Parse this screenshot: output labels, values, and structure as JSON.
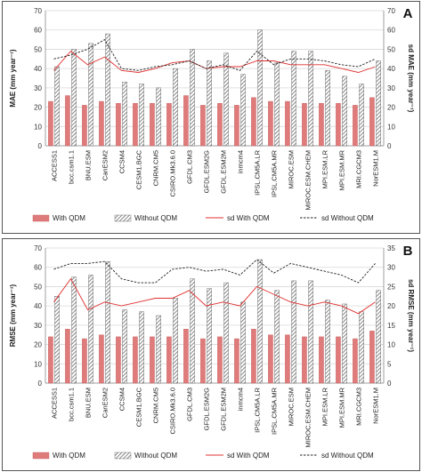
{
  "chart_data": [
    {
      "type": "bar",
      "panel_label": "A",
      "ylabel": "MAE (mm year⁻¹)",
      "y2label": "sd MAE (mm year⁻¹)",
      "ylim": [
        0,
        70
      ],
      "y2lim": [
        0,
        70
      ],
      "yticks": [
        0,
        10,
        20,
        30,
        40,
        50,
        60,
        70
      ],
      "categories": [
        "ACCESS1",
        "bcc.csm1.1",
        "BNU.ESM",
        "CanESM2",
        "CCSM4",
        "CESM1.BGC",
        "CNRM.CM5",
        "CSIRO.Mk3.6.0",
        "GFDL.CM3",
        "GFDL.ESM2G",
        "GFDL.ESM2M",
        "inmcm4",
        "IPSL.CM5A.LR",
        "IPSL.CM5A.MR",
        "MIROC.ESM",
        "MIROC.ESM.CHEM",
        "MPI.ESM.LR",
        "MPI.ESM.MR",
        "MRI.CGCM3",
        "NorESM1.M"
      ],
      "series": [
        {
          "name": "With QDM",
          "kind": "bar",
          "color": "#e07b7b",
          "values": [
            23,
            26,
            21,
            23,
            22,
            22,
            22,
            22,
            26,
            21,
            22,
            21,
            25,
            23,
            23,
            22,
            22,
            22,
            21,
            25
          ]
        },
        {
          "name": "Without QDM",
          "kind": "bar",
          "color": "#8a8a8a",
          "values": [
            41,
            50,
            53,
            58,
            33,
            32,
            30,
            40,
            50,
            44,
            48,
            37,
            60,
            43,
            49,
            49,
            39,
            36,
            32,
            44
          ]
        },
        {
          "name": "sd With QDM",
          "kind": "line",
          "color": "#e03030",
          "values": [
            39,
            49,
            42,
            46,
            39,
            38,
            40,
            43,
            44,
            40,
            41,
            41,
            44,
            44,
            42,
            42,
            42,
            40,
            38,
            41
          ]
        },
        {
          "name": "sd Without QDM",
          "kind": "line",
          "color": "#222222",
          "values": [
            45,
            47,
            50,
            55,
            40,
            39,
            41,
            42,
            44,
            40,
            42,
            39,
            49,
            42,
            45,
            45,
            44,
            42,
            41,
            45
          ]
        }
      ],
      "grid": true,
      "legend_position": "bottom"
    },
    {
      "type": "bar",
      "panel_label": "B",
      "ylabel": "RMSE (mm year⁻¹)",
      "y2label": "sd RMSE (mm year⁻¹)",
      "ylim": [
        0,
        70
      ],
      "y2lim": [
        0,
        35
      ],
      "yticks": [
        0,
        10,
        20,
        30,
        40,
        50,
        60,
        70
      ],
      "y2ticks": [
        0,
        5,
        10,
        15,
        20,
        25,
        30,
        35
      ],
      "categories": [
        "ACCESS1",
        "bcc.csm1.1",
        "BNU.ESM",
        "CanESM2",
        "CCSM4",
        "CESM1.BGC",
        "CNRM.CM5",
        "CSIRO.Mk3.6.0",
        "GFDL.CM3",
        "GFDL.ESM2G",
        "GFDL.ESM2M",
        "inmcm4",
        "IPSL.CM5A.LR",
        "IPSL.CM5A.MR",
        "MIROC.ESM",
        "MIROC.ESM.CHEM",
        "MPI.ESM.LR",
        "MPI.ESM.MR",
        "MRI.CGCM3",
        "NorESM1.M"
      ],
      "series": [
        {
          "name": "With QDM",
          "kind": "bar",
          "color": "#e07b7b",
          "values": [
            24,
            28,
            23,
            25,
            24,
            24,
            24,
            24,
            28,
            23,
            24,
            23,
            28,
            25,
            25,
            24,
            24,
            24,
            23,
            27
          ]
        },
        {
          "name": "Without QDM",
          "kind": "bar",
          "color": "#8a8a8a",
          "values": [
            45,
            55,
            56,
            63,
            38,
            37,
            35,
            44,
            54,
            49,
            52,
            42,
            64,
            48,
            53,
            53,
            43,
            41,
            37,
            48
          ]
        },
        {
          "name": "sd With QDM",
          "kind": "line",
          "color": "#e03030",
          "values": [
            21,
            27,
            19,
            21,
            20,
            21,
            22,
            22,
            24,
            20,
            21,
            20,
            25,
            23,
            21,
            20,
            21,
            20,
            18,
            21
          ]
        },
        {
          "name": "sd Without QDM",
          "kind": "line",
          "color": "#222222",
          "values": [
            29.5,
            31,
            31,
            31.5,
            27,
            26,
            26,
            29.5,
            30,
            29,
            29.5,
            28,
            32,
            28.5,
            31,
            30,
            29,
            28,
            26,
            31
          ]
        }
      ],
      "grid": true,
      "legend_position": "bottom"
    }
  ]
}
